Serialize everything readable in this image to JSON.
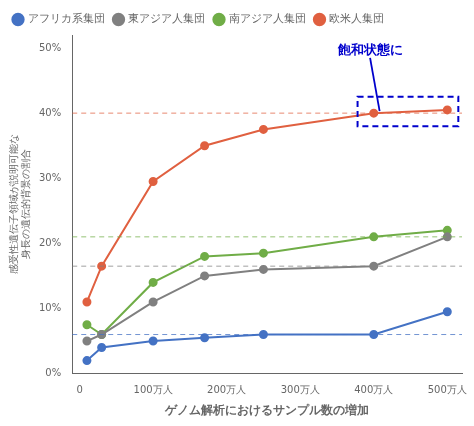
{
  "chart_data": {
    "type": "line",
    "x": [
      10,
      30,
      100,
      170,
      250,
      400,
      500
    ],
    "series": [
      {
        "name": "アフリカ系集団",
        "color": "#4472C4",
        "values": [
          2,
          4,
          5,
          5.5,
          6,
          6,
          9.5
        ],
        "reference_y": 6.0
      },
      {
        "name": "東アジア人集団",
        "color": "#808080",
        "values": [
          5,
          6,
          11,
          15,
          16,
          16.5,
          21
        ],
        "reference_y": 16.5
      },
      {
        "name": "南アジア人集団",
        "color": "#70AD47",
        "values": [
          7.5,
          6,
          14,
          18,
          18.5,
          21,
          22
        ],
        "reference_y": 21.0
      },
      {
        "name": "欧米人集団",
        "color": "#E06040",
        "values": [
          11,
          16.5,
          29.5,
          35,
          37.5,
          40,
          40.5
        ],
        "reference_y": 40.0
      }
    ],
    "marker": "circle",
    "xlabel": "ゲノム解析におけるサンプル数の増加",
    "ylabel": [
      "感受性遺伝子領域が説明可能な",
      "身長の遺伝的背景の割合"
    ],
    "xlim": [
      -10,
      520
    ],
    "ylim": [
      0,
      52
    ],
    "xticks": [
      0,
      {
        "value": 100,
        "label": "100万人"
      },
      {
        "value": 200,
        "label": "200万人"
      },
      {
        "value": 300,
        "label": "300万人"
      },
      {
        "value": 400,
        "label": "400万人"
      },
      {
        "value": 500,
        "label": "500万人"
      }
    ],
    "yticks": [
      {
        "value": 0,
        "label": "0%"
      },
      {
        "value": 10,
        "label": "10%"
      },
      {
        "value": 20,
        "label": "20%"
      },
      {
        "value": 30,
        "label": "30%"
      },
      {
        "value": 40,
        "label": "40%"
      },
      {
        "value": 50,
        "label": "50%"
      }
    ],
    "grid": false,
    "legend": "upper left",
    "highlight": {
      "x": [
        378,
        515
      ],
      "y": [
        38.0,
        42.5
      ],
      "color": "#0000CC"
    },
    "annotations": [
      {
        "text": "飽和状態に",
        "color": "#0000CC",
        "x": 395,
        "y": 48.5,
        "arrow_x": 408,
        "arrow_y": 40.3
      }
    ]
  }
}
